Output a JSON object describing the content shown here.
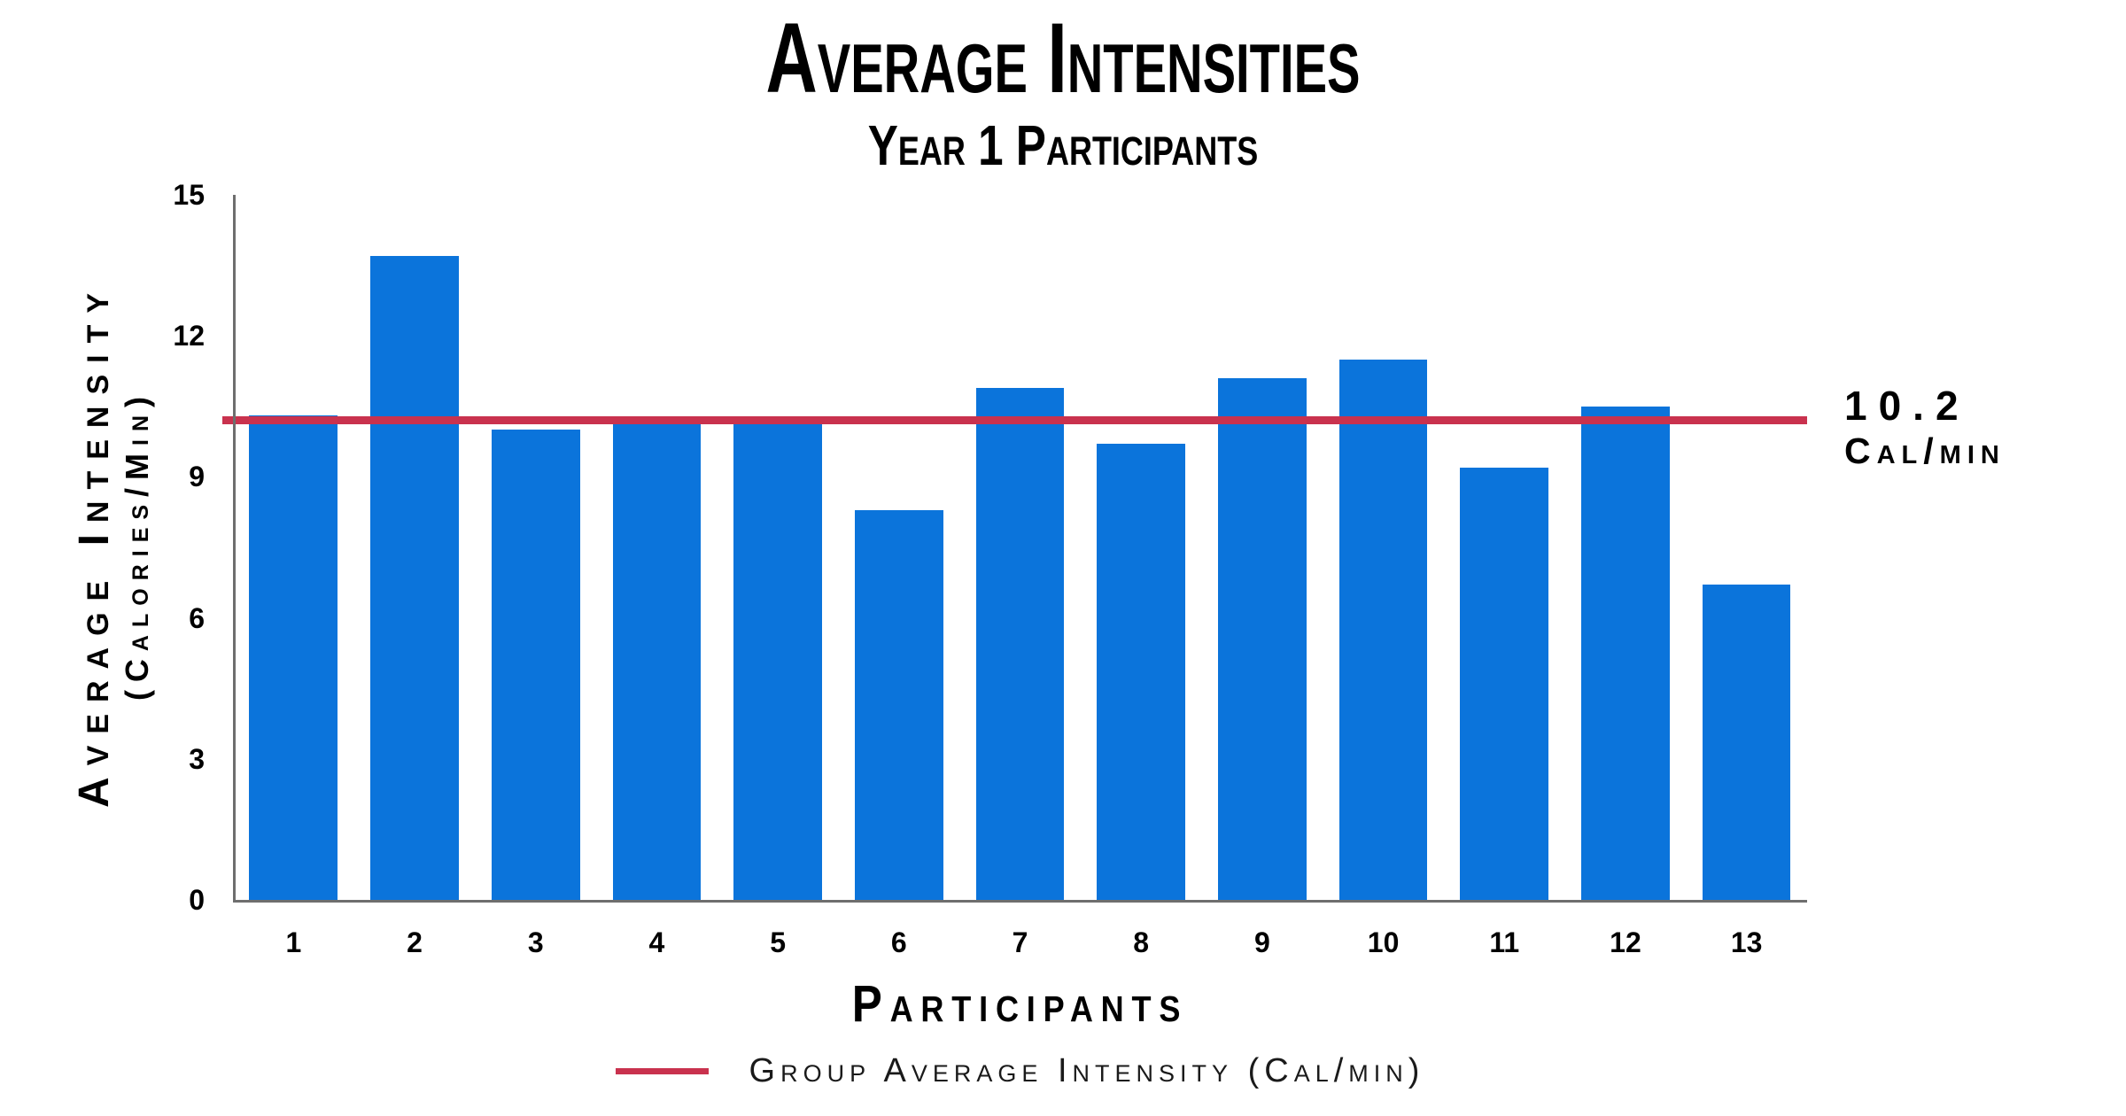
{
  "chart_data": {
    "type": "bar",
    "title": "Average Intensities",
    "subtitle": "Year 1 Participants",
    "xlabel": "Participants",
    "ylabel_line1": "Average Intensity",
    "ylabel_line2": "(Calories/Min)",
    "categories": [
      "1",
      "2",
      "3",
      "4",
      "5",
      "6",
      "7",
      "8",
      "9",
      "10",
      "11",
      "12",
      "13"
    ],
    "values": [
      10.3,
      13.7,
      10.0,
      10.2,
      10.2,
      8.3,
      10.9,
      9.7,
      11.1,
      11.5,
      9.2,
      10.5,
      6.7
    ],
    "ylim": [
      0,
      15
    ],
    "yticks": [
      0,
      3,
      6,
      9,
      12,
      15
    ],
    "grid": false,
    "group_average": 10.2,
    "average_label_value": "10.2",
    "average_label_unit": "Cal/min",
    "legend_label": "Group Average Intensity (Cal/min)",
    "legend_position": "bottom",
    "bar_color": "#0b74db",
    "average_line_color": "#c9324e",
    "axis_color": "#6e6e6e",
    "text_color": "#000000"
  }
}
